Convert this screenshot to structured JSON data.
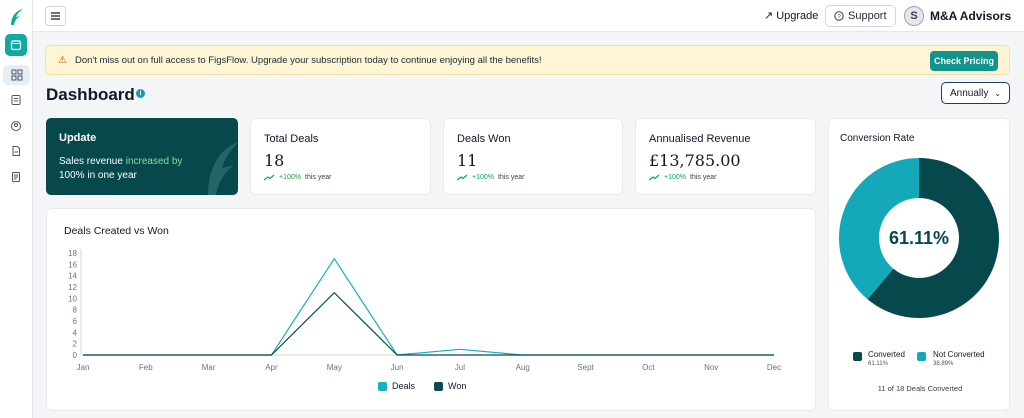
{
  "brand": {
    "accent": "#14a8a0",
    "dark": "#06484c"
  },
  "topbar": {
    "upgrade": "Upgrade",
    "support": "Support",
    "account_name": "M&A Advisors",
    "avatar_letter": "S"
  },
  "banner": {
    "text": "Don't miss out on full access to FigsFlow. Upgrade your subscription today to continue enjoying all the benefits!",
    "button": "Check Pricing"
  },
  "page": {
    "title": "Dashboard",
    "period": "Annually"
  },
  "update_card": {
    "title": "Update",
    "text_before": "Sales revenue ",
    "highlight": "increased by",
    "text_after": "100% in one year"
  },
  "stats": [
    {
      "title": "Total Deals",
      "value": "18",
      "pct": "+100%",
      "suffix": "this year"
    },
    {
      "title": "Deals Won",
      "value": "11",
      "pct": "+100%",
      "suffix": "this year"
    },
    {
      "title": "Annualised Revenue",
      "value": "£13,785.00",
      "pct": "+100%",
      "suffix": "this year"
    }
  ],
  "chart_data": [
    {
      "type": "line",
      "title": "Deals Created vs Won",
      "categories": [
        "Jan",
        "Feb",
        "Mar",
        "Apr",
        "May",
        "Jun",
        "Jul",
        "Aug",
        "Sept",
        "Oct",
        "Nov",
        "Dec"
      ],
      "ylim": [
        0,
        18
      ],
      "yticks": [
        0,
        2,
        4,
        6,
        8,
        10,
        12,
        14,
        16,
        18
      ],
      "series": [
        {
          "name": "Deals",
          "color": "#14b1bf",
          "values": [
            0,
            0,
            0,
            0,
            17,
            0,
            1,
            0,
            0,
            0,
            0,
            0
          ]
        },
        {
          "name": "Won",
          "color": "#0b4a4f",
          "values": [
            0,
            0,
            0,
            0,
            11,
            0,
            0,
            0,
            0,
            0,
            0,
            0
          ]
        }
      ],
      "legend": "bottom"
    },
    {
      "type": "pie",
      "title": "Conversion Rate",
      "center_label": "61.11%",
      "slices": [
        {
          "name": "Converted",
          "value": 61.11,
          "label": "61.11%",
          "color": "#06484c"
        },
        {
          "name": "Not Converted",
          "value": 38.89,
          "label": "38.89%",
          "color": "#14a8b8"
        }
      ],
      "footer": "11 of 18 Deals Converted"
    }
  ]
}
